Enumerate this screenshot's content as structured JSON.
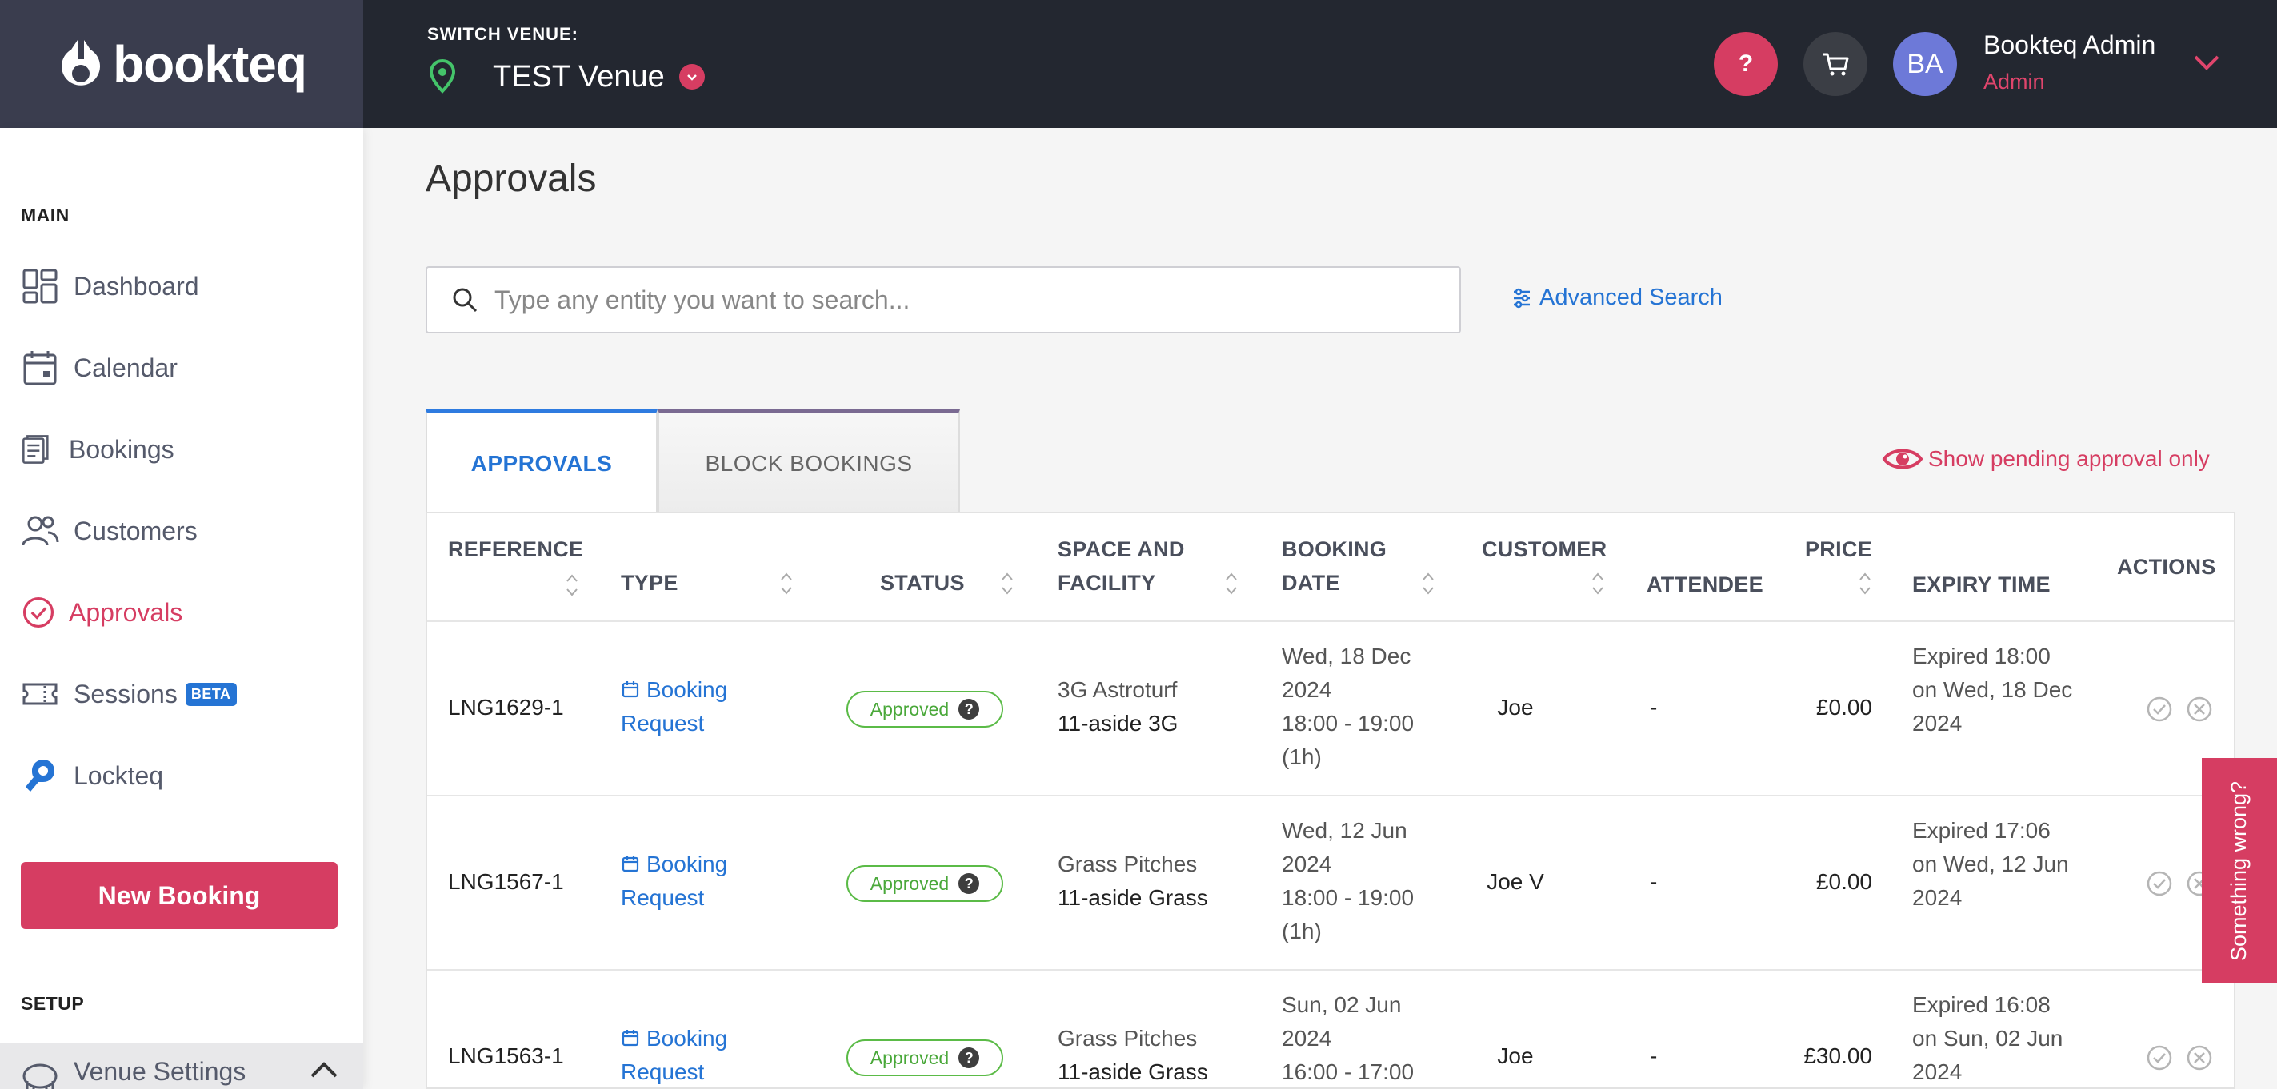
{
  "brand": {
    "name": "bookteq"
  },
  "header": {
    "switch_venue_label": "SWITCH VENUE:",
    "venue_name": "TEST Venue",
    "help_label": "?",
    "user_initials": "BA",
    "user_name": "Bookteq Admin",
    "user_role": "Admin"
  },
  "sidebar": {
    "main_label": "MAIN",
    "items": [
      {
        "label": "Dashboard",
        "icon": "dashboard-icon"
      },
      {
        "label": "Calendar",
        "icon": "calendar-icon"
      },
      {
        "label": "Bookings",
        "icon": "bookings-icon"
      },
      {
        "label": "Customers",
        "icon": "customers-icon"
      },
      {
        "label": "Approvals",
        "icon": "approvals-icon",
        "active": true
      },
      {
        "label": "Sessions",
        "icon": "sessions-icon",
        "badge": "BETA"
      },
      {
        "label": "Lockteq",
        "icon": "lockteq-icon"
      }
    ],
    "new_booking_label": "New Booking",
    "setup_label": "SETUP",
    "venue_settings_label": "Venue Settings"
  },
  "page": {
    "title": "Approvals",
    "search_placeholder": "Type any entity you want to search...",
    "advanced_search_label": "Advanced Search",
    "tabs": [
      {
        "label": "APPROVALS",
        "active": true
      },
      {
        "label": "BLOCK BOOKINGS",
        "active": false
      }
    ],
    "pending_toggle_label": "Show pending approval only"
  },
  "table": {
    "headers": {
      "reference": "REFERENCE",
      "type": "TYPE",
      "status": "STATUS",
      "space_line1": "SPACE AND",
      "space_line2": "FACILITY",
      "date_line1": "BOOKING",
      "date_line2": "DATE",
      "customer": "CUSTOMER",
      "attendee": "ATTENDEE",
      "price": "PRICE",
      "expiry": "EXPIRY TIME",
      "actions": "ACTIONS"
    },
    "rows": [
      {
        "reference": "LNG1629-1",
        "type_line1": "Booking",
        "type_line2": "Request",
        "status": "Approved",
        "space": "3G Astroturf",
        "facility": "11-aside 3G",
        "date_lines": [
          "Wed, 18 Dec",
          "2024",
          "18:00 - 19:00",
          "(1h)"
        ],
        "customer": "Joe",
        "attendee": "-",
        "price": "£0.00",
        "expiry_lines": [
          "Expired 18:00",
          "on Wed, 18 Dec",
          "2024"
        ]
      },
      {
        "reference": "LNG1567-1",
        "type_line1": "Booking",
        "type_line2": "Request",
        "status": "Approved",
        "space": "Grass Pitches",
        "facility": "11-aside Grass",
        "date_lines": [
          "Wed, 12 Jun",
          "2024",
          "18:00 - 19:00",
          "(1h)"
        ],
        "customer": "Joe V",
        "attendee": "-",
        "price": "£0.00",
        "expiry_lines": [
          "Expired 17:06",
          "on Wed, 12 Jun",
          "2024"
        ]
      },
      {
        "reference": "LNG1563-1",
        "type_line1": "Booking",
        "type_line2": "Request",
        "status": "Approved",
        "space": "Grass Pitches",
        "facility": "11-aside Grass",
        "date_lines": [
          "Sun, 02 Jun",
          "2024",
          "16:00 - 17:00"
        ],
        "customer": "Joe",
        "attendee": "-",
        "price": "£30.00",
        "expiry_lines": [
          "Expired 16:08",
          "on Sun, 02 Jun",
          "2024"
        ]
      }
    ]
  },
  "feedback": {
    "label": "Something wrong?"
  },
  "colors": {
    "accent": "#d63d62",
    "link": "#2574d4",
    "topbar": "#232730",
    "approved": "#5bbb47"
  }
}
